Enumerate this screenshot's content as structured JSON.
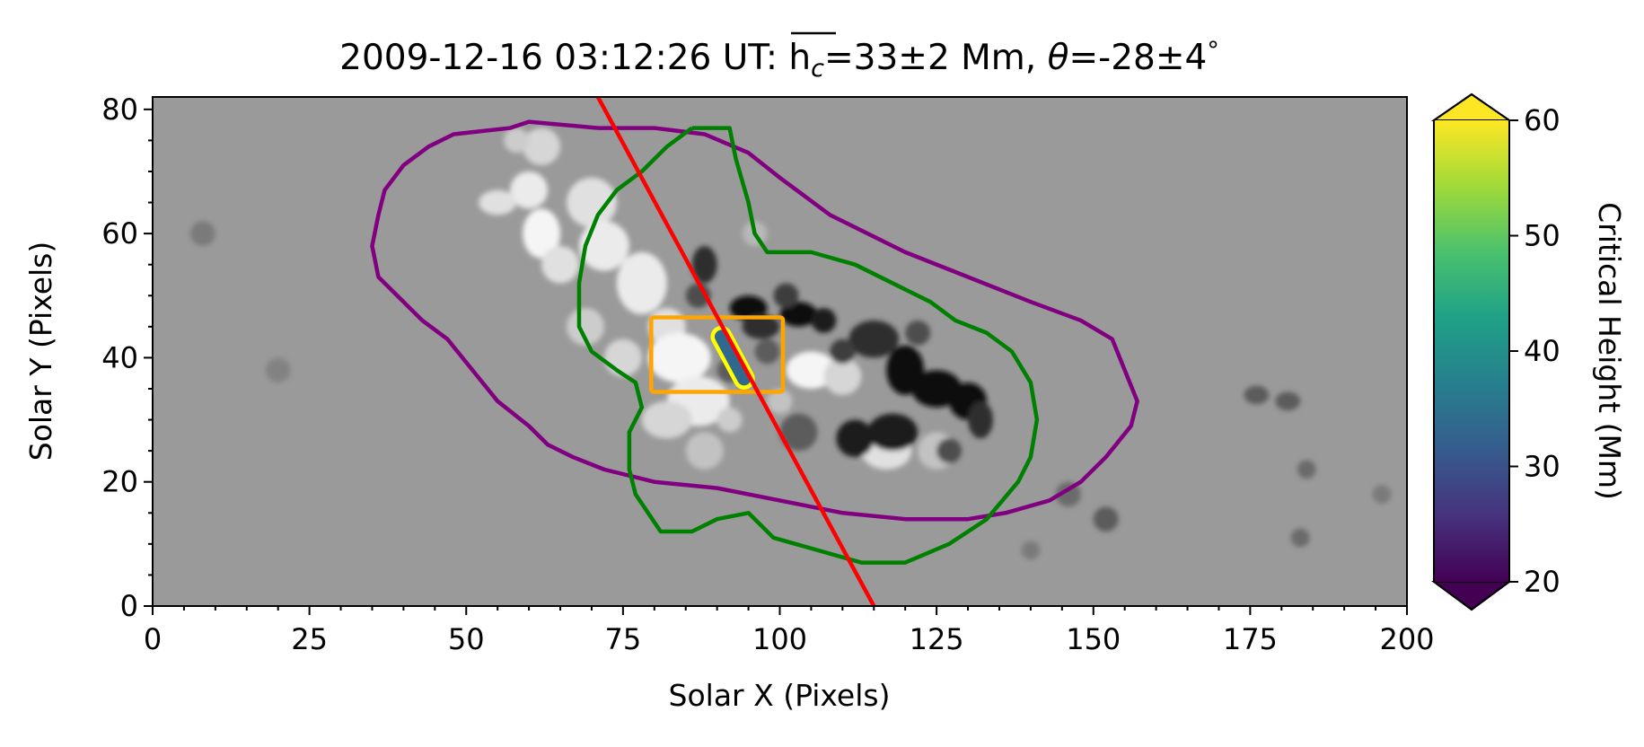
{
  "chart_data": {
    "type": "heatmap",
    "title": {
      "prefix": "2009-12-16 03:12:26 UT: ",
      "h": "h",
      "c": "c",
      "eq": "=33±2 Mm, ",
      "theta": "θ",
      "angle": "=-28±4",
      "deg": "°"
    },
    "xlabel": "Solar X (Pixels)",
    "ylabel": "Solar Y (Pixels)",
    "xlim": [
      0,
      200
    ],
    "ylim": [
      0,
      82
    ],
    "xticks": [
      0,
      25,
      50,
      75,
      100,
      125,
      150,
      175,
      200
    ],
    "yticks": [
      0,
      20,
      40,
      60,
      80
    ],
    "grid": false,
    "colormap": "viridis",
    "colorbar": {
      "label": "Critical Height (Mm)",
      "range": [
        20,
        60
      ],
      "ticks": [
        20,
        30,
        40,
        50,
        60
      ],
      "extend": "both",
      "colors": [
        "#440154",
        "#46327e",
        "#365c8d",
        "#277f8e",
        "#1fa187",
        "#4ac16d",
        "#a0da39",
        "#fde725"
      ]
    },
    "overlays": {
      "purple_contour": {
        "color": "#800080",
        "points": [
          [
            71,
            77
          ],
          [
            60,
            78
          ],
          [
            57,
            77
          ],
          [
            48,
            76
          ],
          [
            44,
            74
          ],
          [
            40,
            71
          ],
          [
            37,
            67
          ],
          [
            36,
            63
          ],
          [
            35,
            58
          ],
          [
            36,
            53
          ],
          [
            39,
            50
          ],
          [
            43,
            46
          ],
          [
            47,
            43
          ],
          [
            51,
            38
          ],
          [
            55,
            33
          ],
          [
            60,
            29
          ],
          [
            63,
            26
          ],
          [
            67,
            24
          ],
          [
            72,
            22
          ],
          [
            80,
            20
          ],
          [
            90,
            19
          ],
          [
            100,
            17
          ],
          [
            110,
            15
          ],
          [
            120,
            14
          ],
          [
            130,
            14
          ],
          [
            136,
            15
          ],
          [
            143,
            17
          ],
          [
            148,
            20
          ],
          [
            152,
            24
          ],
          [
            156,
            29
          ],
          [
            157,
            33
          ],
          [
            155,
            38
          ],
          [
            153,
            43
          ],
          [
            148,
            46
          ],
          [
            140,
            49
          ],
          [
            130,
            53
          ],
          [
            120,
            57
          ],
          [
            108,
            63
          ],
          [
            100,
            69
          ],
          [
            95,
            73
          ],
          [
            88,
            76
          ],
          [
            80,
            77
          ],
          [
            71,
            77
          ]
        ]
      },
      "green_contour": {
        "color": "#008000",
        "points": [
          [
            86,
            77
          ],
          [
            92,
            77
          ],
          [
            93,
            72
          ],
          [
            95,
            65
          ],
          [
            96,
            60
          ],
          [
            98,
            57
          ],
          [
            105,
            57
          ],
          [
            112,
            55
          ],
          [
            118,
            52
          ],
          [
            124,
            49
          ],
          [
            128,
            46
          ],
          [
            133,
            44
          ],
          [
            137,
            41
          ],
          [
            140,
            36
          ],
          [
            141,
            30
          ],
          [
            140,
            24
          ],
          [
            138,
            20
          ],
          [
            133,
            14
          ],
          [
            127,
            10
          ],
          [
            120,
            7
          ],
          [
            113,
            7
          ],
          [
            106,
            9
          ],
          [
            99,
            11
          ],
          [
            95,
            15
          ],
          [
            90,
            14
          ],
          [
            86,
            12
          ],
          [
            81,
            12
          ],
          [
            79,
            15
          ],
          [
            77,
            18
          ],
          [
            76,
            22
          ],
          [
            76,
            28
          ],
          [
            78,
            32
          ],
          [
            77,
            36
          ],
          [
            74,
            38
          ],
          [
            70,
            41
          ],
          [
            68,
            45
          ],
          [
            68,
            52
          ],
          [
            69,
            58
          ],
          [
            71,
            63
          ],
          [
            74,
            67
          ],
          [
            78,
            70
          ],
          [
            82,
            74
          ],
          [
            86,
            77
          ]
        ]
      },
      "orange_box": {
        "color": "#ffa500",
        "x": [
          79.5,
          100.5
        ],
        "y": [
          34.5,
          46.5
        ]
      },
      "pil_fill": "#31688e",
      "pil_outline": "#ffff00",
      "pil_segment": {
        "center": [
          92.5,
          40
        ],
        "length": 10.5,
        "width": 2.8,
        "theta_deg": -28
      },
      "red_line": {
        "color": "#ff0000",
        "points": [
          [
            71,
            82
          ],
          [
            115,
            0
          ]
        ]
      }
    },
    "magnetogram": {
      "cmap": "gray",
      "background_level": 0.6,
      "positive_blobs": [
        [
          62,
          60,
          3,
          4,
          0.9
        ],
        [
          60,
          67,
          3,
          3,
          0.8
        ],
        [
          55,
          65,
          3,
          2,
          0.7
        ],
        [
          65,
          55,
          3,
          3,
          0.7
        ],
        [
          70,
          65,
          4,
          4,
          0.7
        ],
        [
          72,
          58,
          4,
          4,
          0.8
        ],
        [
          78,
          52,
          4,
          5,
          0.8
        ],
        [
          82,
          45,
          3,
          3,
          0.7
        ],
        [
          84,
          40,
          5,
          4,
          0.9
        ],
        [
          87,
          33,
          5,
          4,
          0.8
        ],
        [
          82,
          30,
          4,
          3,
          0.6
        ],
        [
          88,
          25,
          3,
          3,
          0.4
        ],
        [
          105,
          38,
          4,
          3,
          0.9
        ],
        [
          110,
          37,
          3,
          3,
          0.6
        ],
        [
          117,
          25,
          4,
          3,
          0.7
        ],
        [
          125,
          25,
          3,
          3,
          0.4
        ],
        [
          75,
          40,
          3,
          3,
          0.6
        ],
        [
          69,
          45,
          3,
          3,
          0.5
        ],
        [
          96,
          60,
          2,
          2,
          0.3
        ],
        [
          62,
          74,
          3,
          3,
          0.6
        ],
        [
          92,
          30,
          2,
          2,
          0.5
        ],
        [
          100,
          33,
          2,
          2,
          0.4
        ],
        [
          58,
          75,
          2,
          2,
          0.5
        ]
      ],
      "negative_blobs": [
        [
          88,
          55,
          2,
          3,
          0.7
        ],
        [
          95,
          48,
          3,
          2,
          0.9
        ],
        [
          103,
          47,
          3,
          2,
          0.9
        ],
        [
          107,
          46,
          2,
          2,
          0.8
        ],
        [
          115,
          43,
          4,
          3,
          0.7
        ],
        [
          120,
          38,
          3,
          4,
          0.9
        ],
        [
          125,
          35,
          4,
          3,
          0.9
        ],
        [
          130,
          33,
          3,
          3,
          0.9
        ],
        [
          132,
          30,
          2,
          3,
          0.7
        ],
        [
          118,
          28,
          4,
          3,
          0.8
        ],
        [
          112,
          27,
          3,
          3,
          0.8
        ],
        [
          103,
          28,
          3,
          3,
          0.4
        ],
        [
          92,
          38,
          2,
          2,
          0.4
        ],
        [
          97,
          45,
          3,
          2,
          0.7
        ],
        [
          87,
          50,
          2,
          2,
          0.5
        ],
        [
          110,
          41,
          2,
          2,
          0.6
        ],
        [
          127,
          25,
          2,
          2,
          0.5
        ],
        [
          101,
          50,
          2,
          2,
          0.6
        ],
        [
          122,
          44,
          2,
          2,
          0.5
        ],
        [
          98,
          41,
          2,
          2,
          0.4
        ],
        [
          176,
          34,
          2,
          1.5,
          0.4
        ],
        [
          181,
          33,
          2,
          1.5,
          0.4
        ],
        [
          152,
          14,
          2,
          2,
          0.4
        ],
        [
          183,
          11,
          1.5,
          1.5,
          0.3
        ],
        [
          146,
          18,
          2,
          2,
          0.3
        ],
        [
          184,
          22,
          1.5,
          1.5,
          0.3
        ],
        [
          196,
          18,
          1.5,
          1.5,
          0.2
        ],
        [
          140,
          9,
          1.5,
          1.5,
          0.2
        ],
        [
          8,
          60,
          2,
          2,
          0.2
        ],
        [
          20,
          38,
          2,
          2,
          0.15
        ]
      ]
    }
  }
}
